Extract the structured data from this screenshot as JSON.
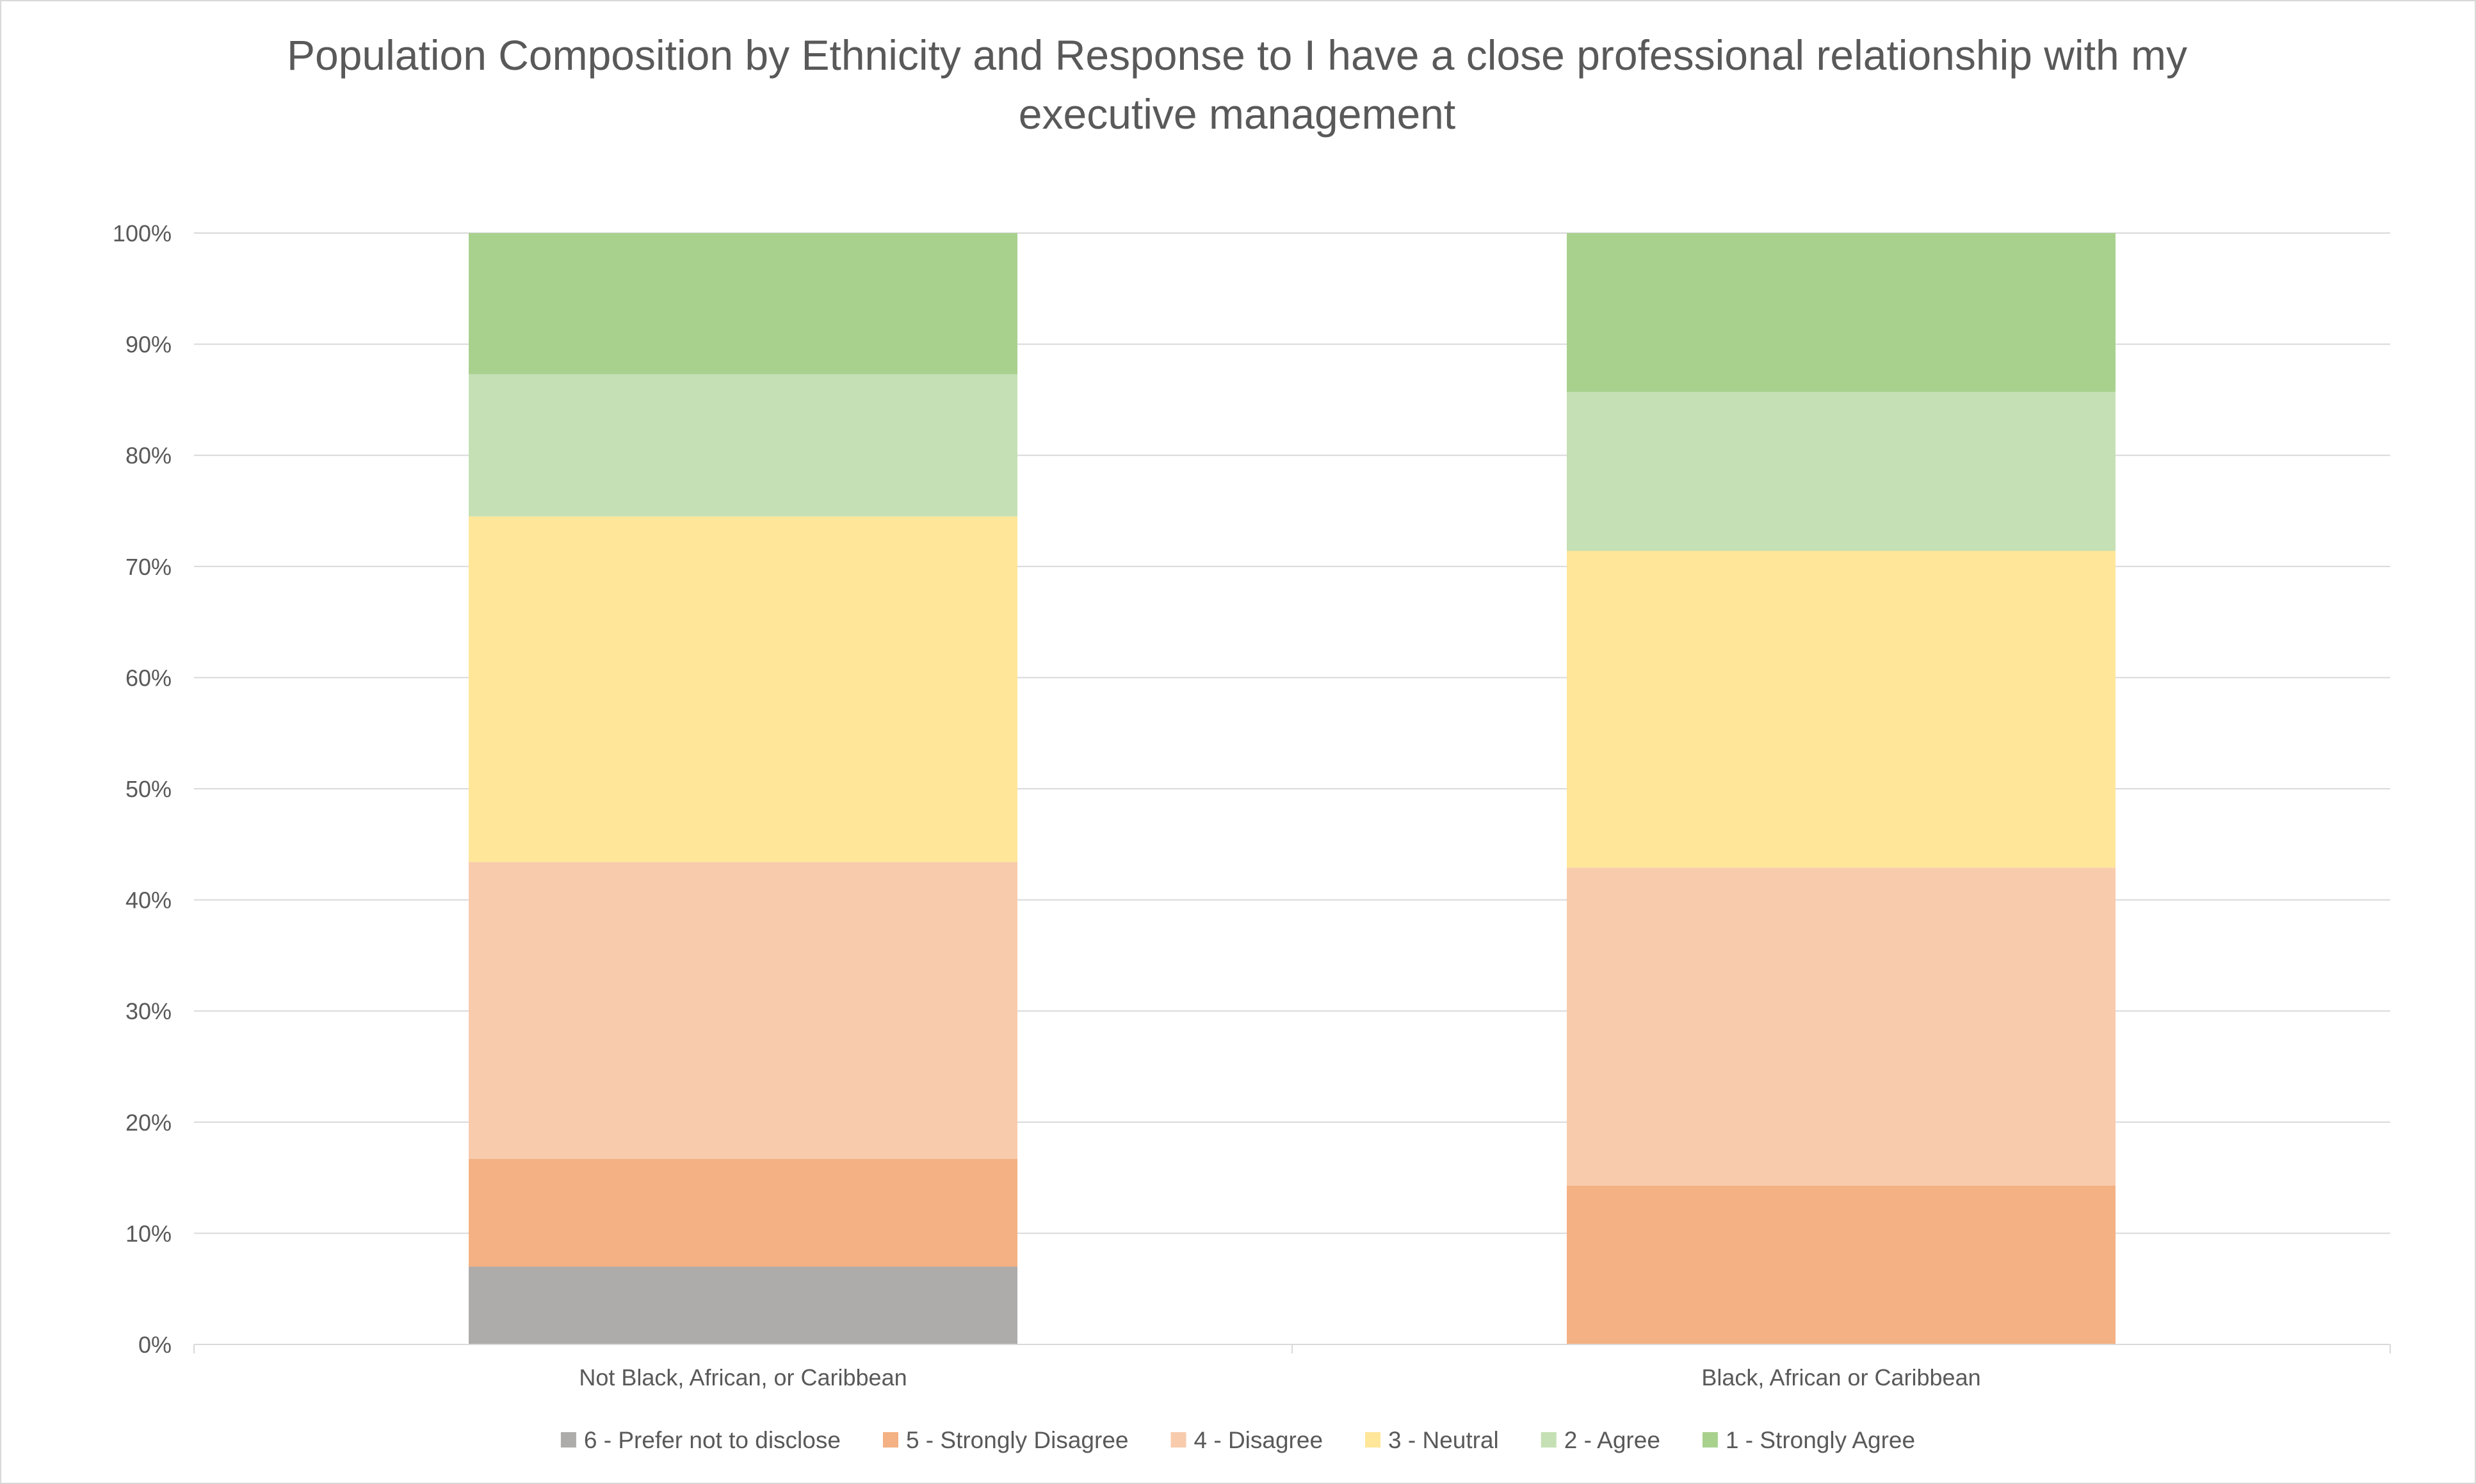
{
  "chart_data": {
    "type": "bar",
    "stacked": true,
    "percent_stacked": true,
    "title": "Population Composition by Ethnicity and Response to I have a close professional relationship with my executive management",
    "title_lines": [
      "Population Composition by Ethnicity and Response to I have a close professional relationship with my",
      "executive management"
    ],
    "categories": [
      "Not Black, African, or Caribbean",
      "Black, African or Caribbean"
    ],
    "ylim": [
      0,
      100
    ],
    "y_ticks": [
      "0%",
      "10%",
      "20%",
      "30%",
      "40%",
      "50%",
      "60%",
      "70%",
      "80%",
      "90%",
      "100%"
    ],
    "grid": true,
    "legend_position": "bottom",
    "series": [
      {
        "name": "6 - Prefer not to disclose",
        "color": "#aeabab",
        "values": [
          7.0,
          0.0
        ]
      },
      {
        "name": "5 - Strongly Disagree",
        "color": "#f4b183",
        "values": [
          9.7,
          14.3
        ]
      },
      {
        "name": "4 - Disagree",
        "color": "#f8cbad",
        "values": [
          26.7,
          28.6
        ]
      },
      {
        "name": "3 - Neutral",
        "color": "#ffe699",
        "values": [
          31.1,
          28.5
        ]
      },
      {
        "name": "2 - Agree",
        "color": "#c5e0b4",
        "values": [
          12.8,
          14.3
        ]
      },
      {
        "name": "1 - Strongly Agree",
        "color": "#a9d18e",
        "values": [
          12.7,
          14.3
        ]
      }
    ]
  }
}
